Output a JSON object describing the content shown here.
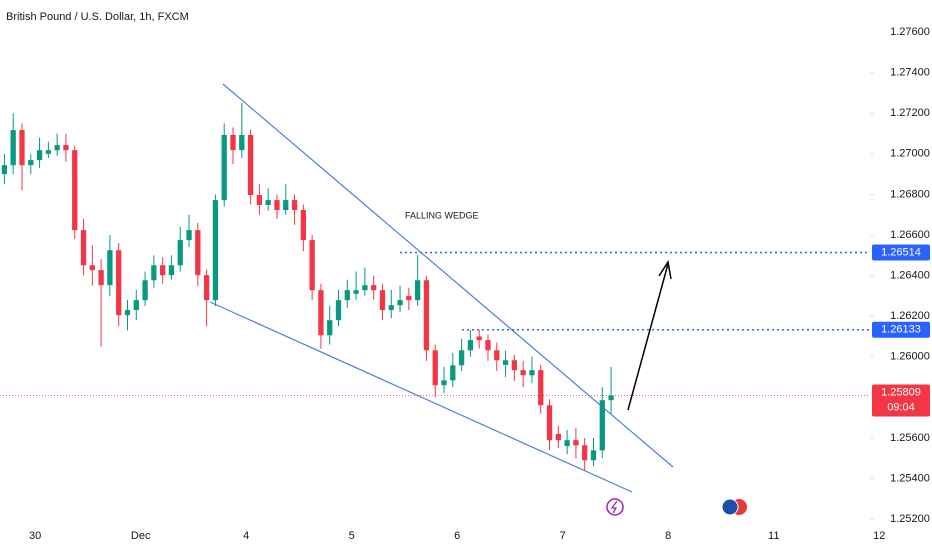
{
  "chart_data": {
    "type": "candlestick",
    "title": "British Pound / U.S. Dollar, 1h, FXCM",
    "annotation": "FALLING WEDGE",
    "up_color": "#089981",
    "down_color": "#f23645",
    "xlim": [
      0,
      106
    ],
    "xticks": [
      {
        "value": 4,
        "label": "30"
      },
      {
        "value": 16,
        "label": "Dec"
      },
      {
        "value": 28,
        "label": "4"
      },
      {
        "value": 40,
        "label": "5"
      },
      {
        "value": 52,
        "label": "6"
      },
      {
        "value": 64,
        "label": "7"
      },
      {
        "value": 76,
        "label": "8"
      },
      {
        "value": 88,
        "label": "11"
      },
      {
        "value": 100,
        "label": "12"
      }
    ],
    "ylim": [
      1.25171,
      1.27758
    ],
    "yticks": [
      {
        "value": 1.276,
        "label": "1.27600"
      },
      {
        "value": 1.274,
        "label": "1.27400"
      },
      {
        "value": 1.272,
        "label": "1.27200"
      },
      {
        "value": 1.27,
        "label": "1.27000"
      },
      {
        "value": 1.268,
        "label": "1.26800"
      },
      {
        "value": 1.266,
        "label": "1.26600"
      },
      {
        "value": 1.264,
        "label": "1.26400"
      },
      {
        "value": 1.262,
        "label": "1.26200"
      },
      {
        "value": 1.26,
        "label": "1.26000"
      },
      {
        "value": 1.256,
        "label": "1.25600"
      },
      {
        "value": 1.254,
        "label": "1.25400"
      },
      {
        "value": 1.252,
        "label": "1.25200"
      }
    ],
    "levels": [
      1.26514,
      1.26133
    ],
    "last_price": 1.25809,
    "countdown": "09:04",
    "open": [
      1.269,
      1.26944,
      1.27117,
      1.26944,
      1.26969,
      1.27,
      1.27018,
      1.27043,
      1.27018,
      1.26624,
      1.26451,
      1.26427,
      1.26353,
      1.26525,
      1.26205,
      1.2623,
      1.26279,
      1.26377,
      1.26451,
      1.26402,
      1.26451,
      1.26575,
      1.26624,
      1.26402,
      1.26279,
      1.26772,
      1.27093,
      1.27018,
      1.27093,
      1.26797,
      1.26748,
      1.26772,
      1.26723,
      1.26772,
      1.26723,
      1.26575,
      1.26328,
      1.26106,
      1.2618,
      1.26279,
      1.2631,
      1.26328,
      1.26353,
      1.26328,
      1.2623,
      1.26254,
      1.263,
      1.26279,
      1.26377,
      1.26032,
      1.2586,
      1.25884,
      1.25958,
      1.26032,
      1.261,
      1.26082,
      1.26032,
      1.2596,
      1.25983,
      1.25934,
      1.25909,
      1.25934,
      1.25761,
      1.2562,
      1.2556,
      1.25589,
      1.25564,
      1.2549,
      1.25539,
      1.25786
    ],
    "high": [
      1.27,
      1.272,
      1.2715,
      1.27,
      1.2708,
      1.2706,
      1.271,
      1.271,
      1.2704,
      1.2668,
      1.2655,
      1.2648,
      1.266,
      1.2656,
      1.2628,
      1.2633,
      1.2642,
      1.265,
      1.2649,
      1.265,
      1.2664,
      1.267,
      1.2666,
      1.2643,
      1.268,
      1.2715,
      1.2713,
      1.2725,
      1.2712,
      1.2685,
      1.2683,
      1.268,
      1.2685,
      1.268,
      1.2675,
      1.266,
      1.2636,
      1.2625,
      1.2633,
      1.2638,
      1.2642,
      1.2644,
      1.264,
      1.2636,
      1.2633,
      1.2635,
      1.2634,
      1.26502,
      1.264,
      1.2606,
      1.2595,
      1.2602,
      1.2609,
      1.26133,
      1.26133,
      1.2611,
      1.2607,
      1.2603,
      1.2601,
      1.2598,
      1.26,
      1.2596,
      1.2579,
      1.2566,
      1.2564,
      1.2565,
      1.256,
      1.256,
      1.2585,
      1.2595
    ],
    "low": [
      1.2685,
      1.269,
      1.2682,
      1.269,
      1.2693,
      1.2698,
      1.2699,
      1.2696,
      1.2658,
      1.264,
      1.2635,
      1.2605,
      1.263,
      1.2615,
      1.2613,
      1.2618,
      1.2625,
      1.2634,
      1.2636,
      1.2638,
      1.2642,
      1.2654,
      1.2635,
      1.2615,
      1.2625,
      1.2674,
      1.2695,
      1.2698,
      1.2675,
      1.267,
      1.2672,
      1.2668,
      1.267,
      1.2665,
      1.2652,
      1.2628,
      1.2604,
      1.2606,
      1.2615,
      1.2624,
      1.2628,
      1.263,
      1.2628,
      1.2618,
      1.2619,
      1.2622,
      1.2623,
      1.2625,
      1.2598,
      1.258,
      1.2582,
      1.2585,
      1.2593,
      1.26,
      1.2604,
      1.2598,
      1.2593,
      1.259,
      1.2588,
      1.2585,
      1.2587,
      1.2572,
      1.2554,
      1.2555,
      1.2552,
      1.255,
      1.2544,
      1.2546,
      1.255,
      1.2572
    ],
    "close": [
      1.26944,
      1.27117,
      1.26944,
      1.26969,
      1.27018,
      1.27018,
      1.27043,
      1.27018,
      1.26624,
      1.26451,
      1.26427,
      1.26353,
      1.26525,
      1.26205,
      1.2623,
      1.26279,
      1.26377,
      1.26451,
      1.26402,
      1.26451,
      1.26575,
      1.26624,
      1.26402,
      1.26279,
      1.26772,
      1.27093,
      1.27018,
      1.27093,
      1.26797,
      1.26748,
      1.26772,
      1.26723,
      1.26772,
      1.26723,
      1.26575,
      1.26328,
      1.26106,
      1.2618,
      1.26279,
      1.26328,
      1.26328,
      1.26353,
      1.26328,
      1.2623,
      1.26254,
      1.26279,
      1.26279,
      1.26377,
      1.26032,
      1.2586,
      1.25884,
      1.25958,
      1.26032,
      1.26082,
      1.26082,
      1.26032,
      1.25983,
      1.25983,
      1.25934,
      1.25909,
      1.25934,
      1.25761,
      1.25589,
      1.25589,
      1.25589,
      1.25564,
      1.2549,
      1.25539,
      1.25786,
      1.25809
    ]
  }
}
